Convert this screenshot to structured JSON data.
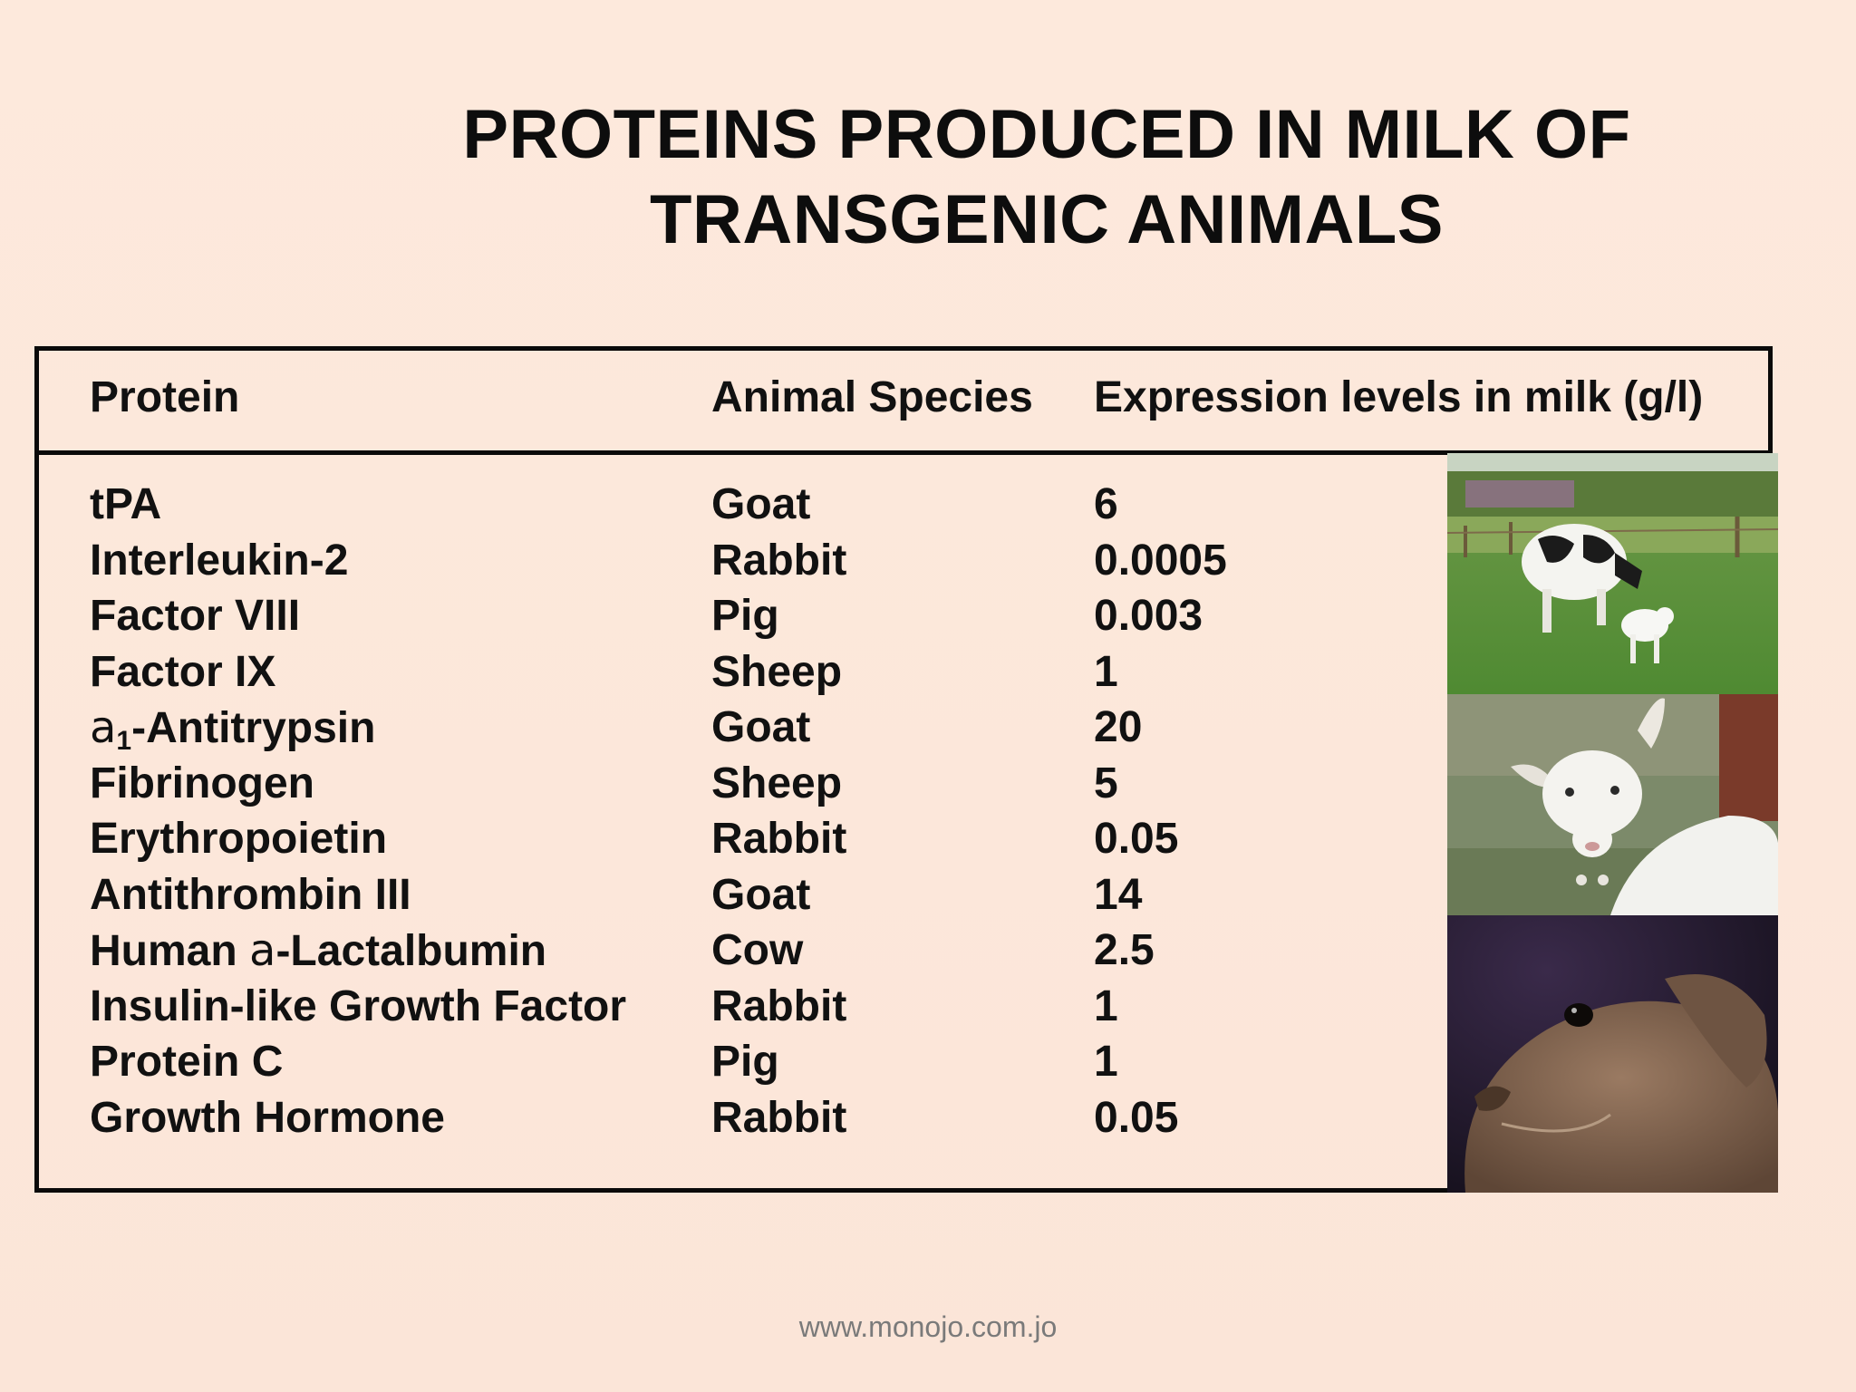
{
  "title": {
    "line1": "PROTEINS PRODUCED IN MILK OF",
    "line2": "TRANSGENIC ANIMALS"
  },
  "table": {
    "headers": {
      "protein": "Protein",
      "species": "Animal Species",
      "level": "Expression levels in milk (g/l)"
    },
    "rows": [
      {
        "protein": "tPA",
        "species": "Goat",
        "level": "6"
      },
      {
        "protein": "Interleukin-2",
        "species": "Rabbit",
        "level": "0.0005"
      },
      {
        "protein": "Factor VIII",
        "species": "Pig",
        "level": "0.003"
      },
      {
        "protein": "Factor IX",
        "species": "Sheep",
        "level": "1"
      },
      {
        "protein_prefix": "a",
        "protein_sub": "1",
        "protein": "-Antitrypsin",
        "species": "Goat",
        "level": "20"
      },
      {
        "protein": "Fibrinogen",
        "species": "Sheep",
        "level": "5"
      },
      {
        "protein": "Erythropoietin",
        "species": "Rabbit",
        "level": "0.05"
      },
      {
        "protein": "Antithrombin III",
        "species": "Goat",
        "level": "14"
      },
      {
        "protein_lead": "Human ",
        "protein_prefix": "a",
        "protein": "-Lactalbumin",
        "species": "Cow",
        "level": "2.5"
      },
      {
        "protein": "Insulin-like Growth Factor",
        "species": "Rabbit",
        "level": "1"
      },
      {
        "protein": "Protein C",
        "species": "Pig",
        "level": "1"
      },
      {
        "protein": "Growth Hormone",
        "species": "Rabbit",
        "level": "0.05"
      }
    ]
  },
  "photos": [
    "cow-and-calf-photo",
    "goat-photo",
    "rabbit-photo"
  ],
  "footer": "www.monojo.com.jo"
}
